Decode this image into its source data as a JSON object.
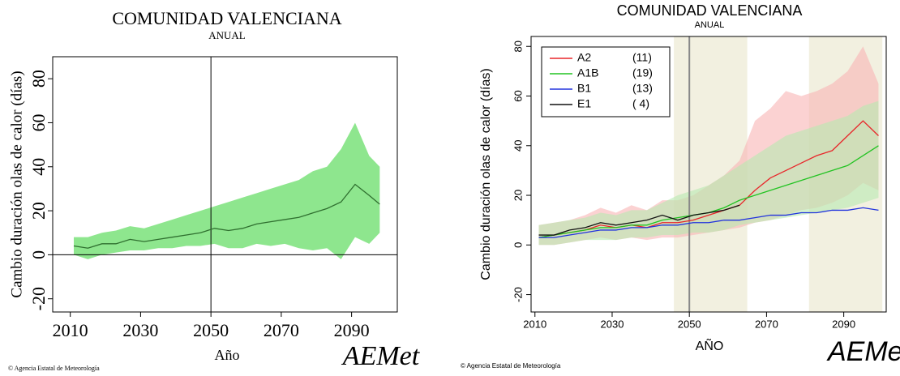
{
  "chart_data": [
    {
      "type": "line",
      "title": "COMUNIDAD VALENCIANA",
      "subtitle": "ANUAL",
      "y_label": "Cambio duración olas de calor (días)",
      "x_label": "Año",
      "source": "© Agencia Estatal de Meteorología",
      "logo": "AEMet",
      "x": [
        2011,
        2015,
        2019,
        2023,
        2027,
        2031,
        2035,
        2039,
        2043,
        2047,
        2051,
        2055,
        2059,
        2063,
        2067,
        2071,
        2075,
        2079,
        2083,
        2087,
        2091,
        2095,
        2098
      ],
      "series": [
        {
          "color": "#2f6f2f",
          "band_color": "#8ee68e",
          "values": [
            4,
            3,
            5,
            5,
            7,
            6,
            7,
            8,
            9,
            10,
            12,
            11,
            12,
            14,
            15,
            16,
            17,
            19,
            21,
            24,
            32,
            27,
            23
          ],
          "lower": [
            0,
            -2,
            0,
            1,
            2,
            2,
            3,
            3,
            4,
            4,
            5,
            3,
            3,
            5,
            4,
            5,
            3,
            2,
            3,
            -2,
            8,
            5,
            10
          ],
          "upper": [
            8,
            8,
            10,
            11,
            13,
            12,
            14,
            16,
            18,
            20,
            22,
            24,
            26,
            28,
            30,
            32,
            34,
            38,
            40,
            48,
            60,
            45,
            40
          ]
        }
      ],
      "xlim": [
        2005,
        2103
      ],
      "xticks": [
        2010,
        2030,
        2050,
        2070,
        2090
      ],
      "ylim": [
        -26,
        90
      ],
      "yticks": [
        -20,
        0,
        20,
        40,
        60,
        80
      ],
      "vline": 2050,
      "hline": 0
    },
    {
      "type": "line",
      "title": "COMUNIDAD VALENCIANA",
      "subtitle": "ANUAL",
      "y_label": "Cambio duración olas de calor (días)",
      "x_label": "AÑO",
      "source": "© Agencia Estatal de Meteorología",
      "logo": "AEMet",
      "x": [
        2011,
        2015,
        2019,
        2023,
        2027,
        2031,
        2035,
        2039,
        2043,
        2047,
        2051,
        2055,
        2059,
        2063,
        2067,
        2071,
        2075,
        2079,
        2083,
        2087,
        2091,
        2095,
        2099
      ],
      "periods": [
        [
          2046,
          2065
        ],
        [
          2081,
          2100
        ]
      ],
      "period_color": "#f2f0e0",
      "series": [
        {
          "name": "A2",
          "count_label": "(11)",
          "color": "#e8262a",
          "band_color": "#f8b4b4",
          "values": [
            3,
            4,
            5,
            6,
            8,
            7,
            8,
            7,
            9,
            9,
            10,
            12,
            14,
            16,
            22,
            27,
            30,
            33,
            36,
            38,
            44,
            50,
            44
          ],
          "lower": [
            0,
            0,
            1,
            2,
            3,
            2,
            3,
            2,
            3,
            3,
            4,
            5,
            6,
            7,
            9,
            10,
            12,
            14,
            15,
            17,
            20,
            25,
            22
          ],
          "upper": [
            8,
            9,
            10,
            12,
            15,
            13,
            16,
            14,
            18,
            18,
            20,
            24,
            28,
            34,
            50,
            55,
            62,
            60,
            62,
            65,
            70,
            80,
            65
          ]
        },
        {
          "name": "A1B",
          "count_label": "(19)",
          "color": "#22c322",
          "band_color": "#b8eab0",
          "values": [
            3,
            4,
            5,
            6,
            7,
            7,
            8,
            8,
            10,
            11,
            12,
            13,
            15,
            18,
            20,
            22,
            24,
            26,
            28,
            30,
            32,
            36,
            40
          ],
          "lower": [
            0,
            0,
            1,
            2,
            2,
            2,
            3,
            3,
            4,
            4,
            5,
            5,
            6,
            8,
            9,
            10,
            11,
            12,
            13,
            14,
            15,
            17,
            19
          ],
          "upper": [
            8,
            9,
            10,
            11,
            13,
            12,
            14,
            14,
            17,
            20,
            22,
            24,
            28,
            32,
            36,
            40,
            44,
            46,
            48,
            50,
            52,
            56,
            58
          ]
        },
        {
          "name": "B1",
          "count_label": "(13)",
          "color": "#2233dd",
          "values": [
            3,
            3,
            4,
            5,
            6,
            6,
            7,
            7,
            8,
            8,
            9,
            9,
            10,
            10,
            11,
            12,
            12,
            13,
            13,
            14,
            14,
            15,
            14
          ]
        },
        {
          "name": "E1",
          "count_label": "( 4)",
          "color": "#111111",
          "values": [
            4,
            4,
            6,
            7,
            9,
            8,
            9,
            10,
            12,
            10,
            12,
            13,
            14,
            16,
            null,
            null,
            null,
            null,
            null,
            null,
            null,
            null,
            null
          ]
        }
      ],
      "xlim": [
        2009,
        2101
      ],
      "xticks": [
        2010,
        2030,
        2050,
        2070,
        2090
      ],
      "ylim": [
        -27,
        84
      ],
      "yticks": [
        -20,
        0,
        20,
        40,
        60,
        80
      ],
      "vline": 2050
    }
  ]
}
